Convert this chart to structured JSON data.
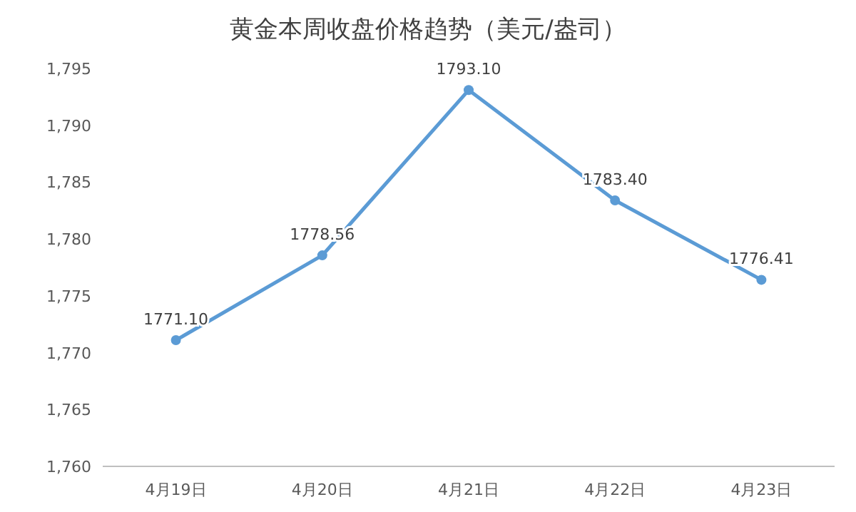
{
  "chart_data": {
    "type": "line",
    "title": "黄金本周收盘价格趋势（美元/盎司）",
    "categories": [
      "4月19日",
      "4月20日",
      "4月21日",
      "4月22日",
      "4月23日"
    ],
    "series": [
      {
        "color": "#5b9bd5",
        "values": [
          1771.1,
          1778.56,
          1793.1,
          1783.4,
          1776.41
        ],
        "value_labels": [
          "1771.10",
          "1778.56",
          "1793.10",
          "1783.40",
          "1776.41"
        ]
      }
    ],
    "ylim": [
      1760,
      1795
    ],
    "yticks": [
      {
        "value": 1760,
        "label": "1,760"
      },
      {
        "value": 1765,
        "label": "1,765"
      },
      {
        "value": 1770,
        "label": "1,770"
      },
      {
        "value": 1775,
        "label": "1,775"
      },
      {
        "value": 1780,
        "label": "1,780"
      },
      {
        "value": 1785,
        "label": "1,785"
      },
      {
        "value": 1790,
        "label": "1,790"
      },
      {
        "value": 1795,
        "label": "1,795"
      }
    ],
    "marker": "circle",
    "line_style": "solid",
    "grid": false
  }
}
